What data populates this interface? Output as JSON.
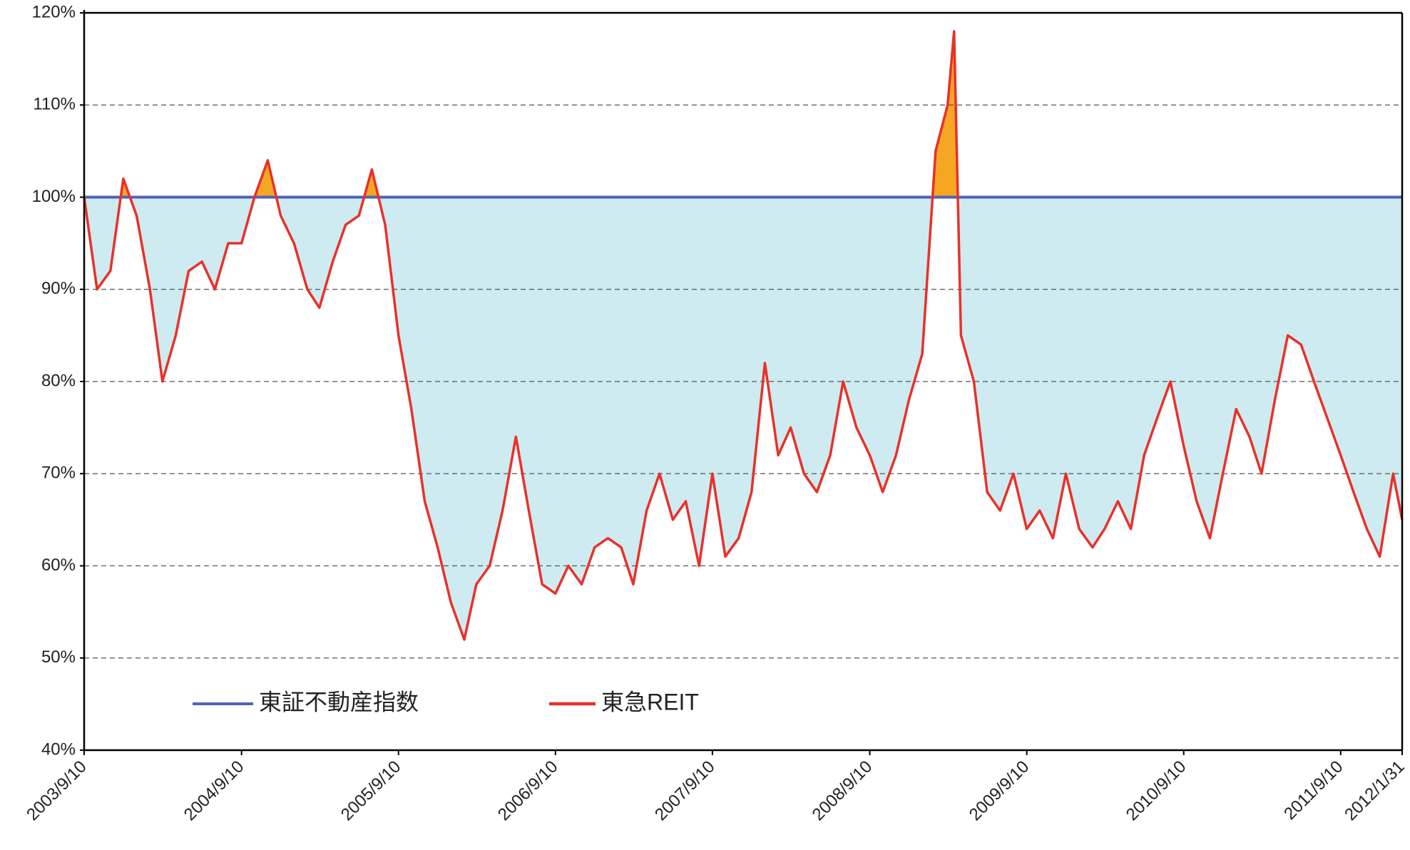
{
  "chart_data": {
    "type": "line",
    "x": [
      "2003/9/10",
      "2003/10/10",
      "2003/11/10",
      "2003/12/10",
      "2004/1/10",
      "2004/2/10",
      "2004/3/10",
      "2004/4/10",
      "2004/5/10",
      "2004/6/10",
      "2004/7/10",
      "2004/8/10",
      "2004/9/10",
      "2004/10/10",
      "2004/11/10",
      "2004/12/10",
      "2005/1/10",
      "2005/2/10",
      "2005/3/10",
      "2005/4/10",
      "2005/5/10",
      "2005/6/10",
      "2005/7/10",
      "2005/8/10",
      "2005/9/10",
      "2005/10/10",
      "2005/11/10",
      "2005/12/10",
      "2006/1/10",
      "2006/2/10",
      "2006/3/10",
      "2006/4/10",
      "2006/5/10",
      "2006/6/10",
      "2006/7/10",
      "2006/8/10",
      "2006/9/10",
      "2006/10/10",
      "2006/11/10",
      "2006/12/10",
      "2007/1/10",
      "2007/2/10",
      "2007/3/10",
      "2007/4/10",
      "2007/5/10",
      "2007/6/10",
      "2007/7/10",
      "2007/8/10",
      "2007/9/10",
      "2007/10/10",
      "2007/11/10",
      "2007/12/10",
      "2008/1/10",
      "2008/2/10",
      "2008/3/10",
      "2008/4/10",
      "2008/5/10",
      "2008/6/10",
      "2008/7/10",
      "2008/8/10",
      "2008/9/10",
      "2008/10/10",
      "2008/11/10",
      "2008/12/10",
      "2009/1/10",
      "2009/2/10",
      "2009/3/10",
      "2009/3/25",
      "2009/4/10",
      "2009/5/10",
      "2009/6/10",
      "2009/7/10",
      "2009/8/10",
      "2009/9/10",
      "2009/10/10",
      "2009/11/10",
      "2009/12/10",
      "2010/1/10",
      "2010/2/10",
      "2010/3/10",
      "2010/4/10",
      "2010/5/10",
      "2010/6/10",
      "2010/7/10",
      "2010/8/10",
      "2010/9/10",
      "2010/10/10",
      "2010/11/10",
      "2010/12/10",
      "2011/1/10",
      "2011/2/10",
      "2011/3/10",
      "2011/4/10",
      "2011/5/10",
      "2011/6/10",
      "2011/7/10",
      "2011/8/10",
      "2011/9/10",
      "2011/10/10",
      "2011/11/10",
      "2011/12/10",
      "2012/1/10",
      "2012/1/31"
    ],
    "series": [
      {
        "name": "東証不動産指数",
        "color": "#4f63b8",
        "values": [
          100,
          100,
          100,
          100,
          100,
          100,
          100,
          100,
          100,
          100,
          100,
          100,
          100,
          100,
          100,
          100,
          100,
          100,
          100,
          100,
          100,
          100,
          100,
          100,
          100,
          100,
          100,
          100,
          100,
          100,
          100,
          100,
          100,
          100,
          100,
          100,
          100,
          100,
          100,
          100,
          100,
          100,
          100,
          100,
          100,
          100,
          100,
          100,
          100,
          100,
          100,
          100,
          100,
          100,
          100,
          100,
          100,
          100,
          100,
          100,
          100,
          100,
          100,
          100,
          100,
          100,
          100,
          100,
          100,
          100,
          100,
          100,
          100,
          100,
          100,
          100,
          100,
          100,
          100,
          100,
          100,
          100,
          100,
          100,
          100,
          100,
          100,
          100,
          100,
          100,
          100,
          100,
          100,
          100,
          100,
          100,
          100,
          100,
          100,
          100,
          100,
          100,
          100
        ]
      },
      {
        "name": "東急REIT",
        "color": "#e8312a",
        "values": [
          100,
          90,
          92,
          102,
          98,
          90,
          80,
          85,
          92,
          93,
          90,
          95,
          95,
          100,
          104,
          98,
          95,
          90,
          88,
          93,
          97,
          98,
          103,
          97,
          85,
          77,
          67,
          62,
          56,
          52,
          58,
          60,
          66,
          74,
          66,
          58,
          57,
          60,
          58,
          62,
          63,
          62,
          58,
          66,
          70,
          65,
          67,
          60,
          70,
          61,
          63,
          68,
          82,
          72,
          75,
          70,
          68,
          72,
          80,
          75,
          72,
          68,
          72,
          78,
          83,
          105,
          110,
          118,
          85,
          80,
          68,
          66,
          70,
          64,
          66,
          63,
          70,
          64,
          62,
          64,
          67,
          64,
          72,
          76,
          80,
          73,
          67,
          63,
          70,
          77,
          74,
          70,
          78,
          85,
          84,
          80,
          76,
          72,
          68,
          64,
          61,
          70,
          65
        ]
      }
    ],
    "fill_below_color": "#cdebf0",
    "fill_above_color": "#f5a623",
    "xlim": [
      "2003/9/10",
      "2012/1/31"
    ],
    "xticks": [
      "2003/9/10",
      "2004/9/10",
      "2005/9/10",
      "2006/9/10",
      "2007/9/10",
      "2008/9/10",
      "2009/9/10",
      "2010/9/10",
      "2011/9/10",
      "2012/1/31"
    ],
    "ylim": [
      40,
      120
    ],
    "yticks": [
      {
        "value": 40,
        "label": "40%"
      },
      {
        "value": 50,
        "label": "50%"
      },
      {
        "value": 60,
        "label": "60%"
      },
      {
        "value": 70,
        "label": "70%"
      },
      {
        "value": 80,
        "label": "80%"
      },
      {
        "value": 90,
        "label": "90%"
      },
      {
        "value": 100,
        "label": "100%"
      },
      {
        "value": 110,
        "label": "110%"
      },
      {
        "value": 120,
        "label": "120%"
      }
    ],
    "grid": true,
    "legend": "lower left"
  }
}
